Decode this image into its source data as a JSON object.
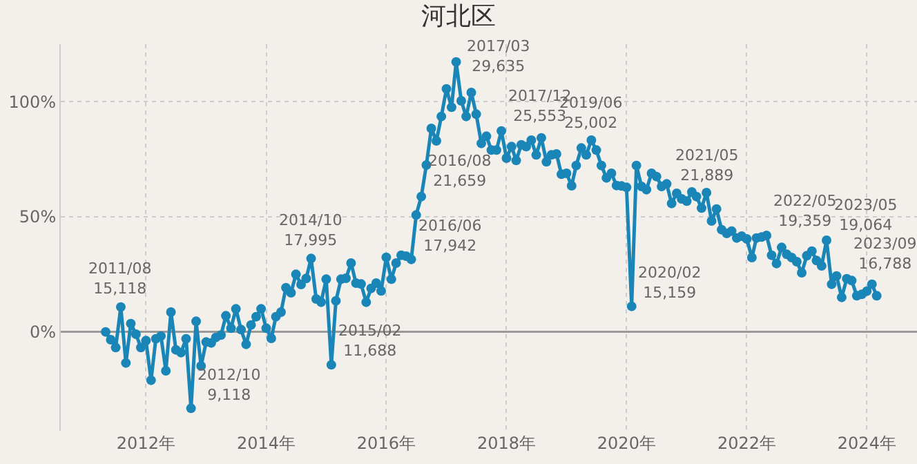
{
  "chart_data": {
    "type": "line",
    "title": "河北区",
    "x": [
      "2011-05",
      "2011-06",
      "2011-07",
      "2011-08",
      "2011-09",
      "2011-10",
      "2011-11",
      "2011-12",
      "2012-01",
      "2012-02",
      "2012-03",
      "2012-04",
      "2012-05",
      "2012-06",
      "2012-07",
      "2012-08",
      "2012-09",
      "2012-10",
      "2012-11",
      "2012-12",
      "2013-01",
      "2013-02",
      "2013-03",
      "2013-04",
      "2013-05",
      "2013-06",
      "2013-07",
      "2013-08",
      "2013-09",
      "2013-10",
      "2013-11",
      "2013-12",
      "2014-01",
      "2014-02",
      "2014-03",
      "2014-04",
      "2014-05",
      "2014-06",
      "2014-07",
      "2014-08",
      "2014-09",
      "2014-10",
      "2014-11",
      "2014-12",
      "2015-01",
      "2015-02",
      "2015-03",
      "2015-04",
      "2015-05",
      "2015-06",
      "2015-07",
      "2015-08",
      "2015-09",
      "2015-10",
      "2015-11",
      "2015-12",
      "2016-01",
      "2016-02",
      "2016-03",
      "2016-04",
      "2016-05",
      "2016-06",
      "2016-07",
      "2016-08",
      "2016-09",
      "2016-10",
      "2016-11",
      "2016-12",
      "2017-01",
      "2017-02",
      "2017-03",
      "2017-04",
      "2017-05",
      "2017-06",
      "2017-07",
      "2017-08",
      "2017-09",
      "2017-10",
      "2017-11",
      "2017-12",
      "2018-01",
      "2018-02",
      "2018-03",
      "2018-04",
      "2018-05",
      "2018-06",
      "2018-07",
      "2018-08",
      "2018-09",
      "2018-10",
      "2018-11",
      "2018-12",
      "2019-01",
      "2019-02",
      "2019-03",
      "2019-04",
      "2019-05",
      "2019-06",
      "2019-07",
      "2019-08",
      "2019-09",
      "2019-10",
      "2019-11",
      "2019-12",
      "2020-01",
      "2020-02",
      "2020-03",
      "2020-04",
      "2020-05",
      "2020-06",
      "2020-07",
      "2020-08",
      "2020-09",
      "2020-10",
      "2020-11",
      "2020-12",
      "2021-01",
      "2021-02",
      "2021-03",
      "2021-04",
      "2021-05",
      "2021-06",
      "2021-07",
      "2021-08",
      "2021-09",
      "2021-10",
      "2021-11",
      "2021-12",
      "2022-01",
      "2022-02",
      "2022-03",
      "2022-04",
      "2022-05",
      "2022-06",
      "2022-07",
      "2022-08",
      "2022-09",
      "2022-10",
      "2022-11",
      "2022-12",
      "2023-01",
      "2023-02",
      "2023-03",
      "2023-04",
      "2023-05",
      "2023-06",
      "2023-07",
      "2023-08",
      "2023-09",
      "2023-10",
      "2023-11",
      "2023-12",
      "2024-01",
      "2024-02",
      "2024-03"
    ],
    "series": [
      {
        "color": "#1a86b8",
        "values": [
          0,
          -3.4,
          -6.8,
          10.8,
          -13.5,
          3.6,
          -1,
          -6.8,
          -3.8,
          -21,
          -3,
          -1.8,
          -16.9,
          8.6,
          -7.8,
          -9,
          -3,
          -33.2,
          4.6,
          -14.8,
          -4.4,
          -4.8,
          -2.4,
          -1.4,
          7,
          1.6,
          10,
          1,
          -5.4,
          3,
          6.6,
          10,
          1.6,
          -2.8,
          6.6,
          8.6,
          19.2,
          17,
          25,
          20.6,
          23.2,
          31.9,
          14.3,
          12.9,
          22.9,
          -14.3,
          13.5,
          22.9,
          23.3,
          29.9,
          21.2,
          20.8,
          12.9,
          18.9,
          21.2,
          17.8,
          32.4,
          22.9,
          29.9,
          33.3,
          32.9,
          31.5,
          50.8,
          58.8,
          72.5,
          88.4,
          83,
          93.6,
          105.6,
          97.6,
          117.3,
          100.4,
          93.6,
          104,
          94.6,
          81.9,
          85,
          79,
          79,
          87.3,
          75.5,
          80.5,
          74.5,
          81.3,
          80.5,
          83.3,
          76.9,
          84.3,
          73.9,
          76.9,
          77.3,
          68.5,
          68.9,
          63.5,
          72.3,
          79.9,
          76.9,
          83.3,
          79,
          72.3,
          66.9,
          68.9,
          63.6,
          63.4,
          62.8,
          11.1,
          72.3,
          63.2,
          61.8,
          68.9,
          67.5,
          63.2,
          64.3,
          55.8,
          60.2,
          57.8,
          56.8,
          60.8,
          58.8,
          53.8,
          60.5,
          48.2,
          53.4,
          44.4,
          42.8,
          43.8,
          40.8,
          41.6,
          40.4,
          32.3,
          40.8,
          41.2,
          41.9,
          33.3,
          29.7,
          36.7,
          33.7,
          32.3,
          30.5,
          25.7,
          33.1,
          35.1,
          31,
          28.7,
          39.8,
          20.7,
          24.3,
          15,
          23.1,
          22.3,
          15.7,
          16.3,
          17.7,
          20.7,
          15.7
        ]
      }
    ],
    "xlim": [
      "2010-08",
      "2024-11"
    ],
    "xticks": [
      {
        "value": "2012",
        "label": "2012年"
      },
      {
        "value": "2014",
        "label": "2014年"
      },
      {
        "value": "2016",
        "label": "2016年"
      },
      {
        "value": "2018",
        "label": "2018年"
      },
      {
        "value": "2020",
        "label": "2020年"
      },
      {
        "value": "2022",
        "label": "2022年"
      },
      {
        "value": "2024",
        "label": "2024年"
      }
    ],
    "ylim": [
      -43,
      125
    ],
    "yticks": [
      {
        "value": 0,
        "label": "0%"
      },
      {
        "value": 50,
        "label": "50%"
      },
      {
        "value": 100,
        "label": "100%"
      }
    ],
    "grid": true,
    "legend": false,
    "marker": "circle",
    "line_style": "solid",
    "annotations": [
      {
        "text": "2011/08\n15,118",
        "x": "2011-08",
        "y": 10.8
      },
      {
        "text": "2012/10\n9,118",
        "x": "2012-10",
        "y": -33.2
      },
      {
        "text": "2014/10\n17,995",
        "x": "2014-10",
        "y": 31.9
      },
      {
        "text": "2015/02\n11,688",
        "x": "2015-02",
        "y": -14.3
      },
      {
        "text": "2016/06\n17,942",
        "x": "2016-06",
        "y": 31.5
      },
      {
        "text": "2016/08\n21,659",
        "x": "2016-08",
        "y": 58.8
      },
      {
        "text": "2017/03\n29,635",
        "x": "2017-03",
        "y": 117.3
      },
      {
        "text": "2017/12\n25,553",
        "x": "2017-12",
        "y": 87.3
      },
      {
        "text": "2019/06\n25,002",
        "x": "2019-06",
        "y": 83.3
      },
      {
        "text": "2020/02\n15,159",
        "x": "2020-02",
        "y": 11.1
      },
      {
        "text": "2021/05\n21,889",
        "x": "2021-05",
        "y": 60.5
      },
      {
        "text": "2022/05\n19,359",
        "x": "2022-05",
        "y": 41.9
      },
      {
        "text": "2023/05\n19,064",
        "x": "2023-05",
        "y": 39.8
      },
      {
        "text": "2023/09\n16,788",
        "x": "2023-09",
        "y": 23.1
      }
    ]
  }
}
